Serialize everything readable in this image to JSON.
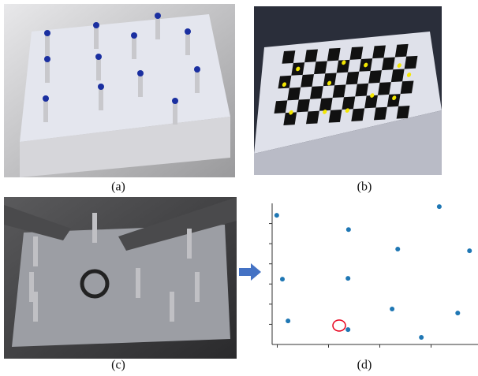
{
  "panels": [
    {
      "caption": "(a)"
    },
    {
      "caption": "(b)"
    },
    {
      "caption": "(c)"
    },
    {
      "caption": "(d)"
    }
  ],
  "chart_data": {
    "type": "scatter",
    "color": "#1f77b4",
    "x": [
      -0.01,
      1.39,
      3.16,
      2.35,
      3.75,
      0.1,
      1.38,
      0.21,
      2.24,
      3.52,
      1.38,
      2.81
    ],
    "y": [
      6.41,
      5.7,
      6.84,
      4.73,
      4.65,
      3.24,
      3.28,
      1.17,
      1.76,
      1.56,
      0.74,
      0.35
    ],
    "xlim": [
      -0.1,
      3.9
    ],
    "xticks": [
      0,
      1,
      2,
      3
    ],
    "ylim": [
      0,
      7
    ],
    "yticks": [
      1,
      2,
      3,
      4,
      5,
      6
    ]
  }
}
